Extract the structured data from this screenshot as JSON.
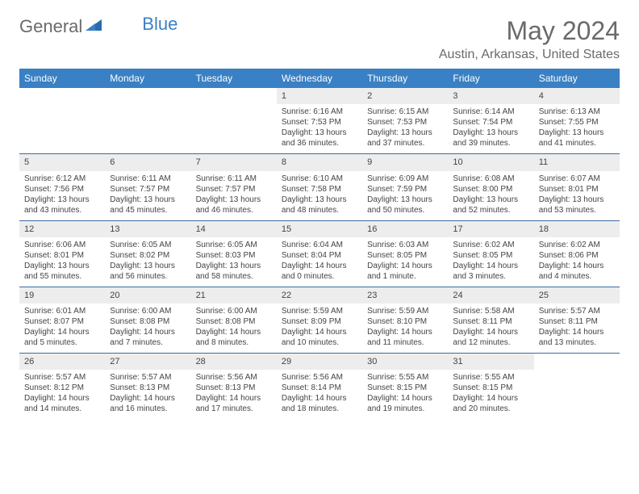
{
  "logo": {
    "general": "General",
    "blue": "Blue"
  },
  "title": "May 2024",
  "location": "Austin, Arkansas, United States",
  "headers": [
    "Sunday",
    "Monday",
    "Tuesday",
    "Wednesday",
    "Thursday",
    "Friday",
    "Saturday"
  ],
  "colors": {
    "accent": "#3a80c4",
    "text": "#6a6a6a",
    "daybg": "#ededed"
  },
  "weeks": [
    [
      null,
      null,
      null,
      {
        "n": "1",
        "sr": "Sunrise: 6:16 AM",
        "ss": "Sunset: 7:53 PM",
        "d1": "Daylight: 13 hours",
        "d2": "and 36 minutes."
      },
      {
        "n": "2",
        "sr": "Sunrise: 6:15 AM",
        "ss": "Sunset: 7:53 PM",
        "d1": "Daylight: 13 hours",
        "d2": "and 37 minutes."
      },
      {
        "n": "3",
        "sr": "Sunrise: 6:14 AM",
        "ss": "Sunset: 7:54 PM",
        "d1": "Daylight: 13 hours",
        "d2": "and 39 minutes."
      },
      {
        "n": "4",
        "sr": "Sunrise: 6:13 AM",
        "ss": "Sunset: 7:55 PM",
        "d1": "Daylight: 13 hours",
        "d2": "and 41 minutes."
      }
    ],
    [
      {
        "n": "5",
        "sr": "Sunrise: 6:12 AM",
        "ss": "Sunset: 7:56 PM",
        "d1": "Daylight: 13 hours",
        "d2": "and 43 minutes."
      },
      {
        "n": "6",
        "sr": "Sunrise: 6:11 AM",
        "ss": "Sunset: 7:57 PM",
        "d1": "Daylight: 13 hours",
        "d2": "and 45 minutes."
      },
      {
        "n": "7",
        "sr": "Sunrise: 6:11 AM",
        "ss": "Sunset: 7:57 PM",
        "d1": "Daylight: 13 hours",
        "d2": "and 46 minutes."
      },
      {
        "n": "8",
        "sr": "Sunrise: 6:10 AM",
        "ss": "Sunset: 7:58 PM",
        "d1": "Daylight: 13 hours",
        "d2": "and 48 minutes."
      },
      {
        "n": "9",
        "sr": "Sunrise: 6:09 AM",
        "ss": "Sunset: 7:59 PM",
        "d1": "Daylight: 13 hours",
        "d2": "and 50 minutes."
      },
      {
        "n": "10",
        "sr": "Sunrise: 6:08 AM",
        "ss": "Sunset: 8:00 PM",
        "d1": "Daylight: 13 hours",
        "d2": "and 52 minutes."
      },
      {
        "n": "11",
        "sr": "Sunrise: 6:07 AM",
        "ss": "Sunset: 8:01 PM",
        "d1": "Daylight: 13 hours",
        "d2": "and 53 minutes."
      }
    ],
    [
      {
        "n": "12",
        "sr": "Sunrise: 6:06 AM",
        "ss": "Sunset: 8:01 PM",
        "d1": "Daylight: 13 hours",
        "d2": "and 55 minutes."
      },
      {
        "n": "13",
        "sr": "Sunrise: 6:05 AM",
        "ss": "Sunset: 8:02 PM",
        "d1": "Daylight: 13 hours",
        "d2": "and 56 minutes."
      },
      {
        "n": "14",
        "sr": "Sunrise: 6:05 AM",
        "ss": "Sunset: 8:03 PM",
        "d1": "Daylight: 13 hours",
        "d2": "and 58 minutes."
      },
      {
        "n": "15",
        "sr": "Sunrise: 6:04 AM",
        "ss": "Sunset: 8:04 PM",
        "d1": "Daylight: 14 hours",
        "d2": "and 0 minutes."
      },
      {
        "n": "16",
        "sr": "Sunrise: 6:03 AM",
        "ss": "Sunset: 8:05 PM",
        "d1": "Daylight: 14 hours",
        "d2": "and 1 minute."
      },
      {
        "n": "17",
        "sr": "Sunrise: 6:02 AM",
        "ss": "Sunset: 8:05 PM",
        "d1": "Daylight: 14 hours",
        "d2": "and 3 minutes."
      },
      {
        "n": "18",
        "sr": "Sunrise: 6:02 AM",
        "ss": "Sunset: 8:06 PM",
        "d1": "Daylight: 14 hours",
        "d2": "and 4 minutes."
      }
    ],
    [
      {
        "n": "19",
        "sr": "Sunrise: 6:01 AM",
        "ss": "Sunset: 8:07 PM",
        "d1": "Daylight: 14 hours",
        "d2": "and 5 minutes."
      },
      {
        "n": "20",
        "sr": "Sunrise: 6:00 AM",
        "ss": "Sunset: 8:08 PM",
        "d1": "Daylight: 14 hours",
        "d2": "and 7 minutes."
      },
      {
        "n": "21",
        "sr": "Sunrise: 6:00 AM",
        "ss": "Sunset: 8:08 PM",
        "d1": "Daylight: 14 hours",
        "d2": "and 8 minutes."
      },
      {
        "n": "22",
        "sr": "Sunrise: 5:59 AM",
        "ss": "Sunset: 8:09 PM",
        "d1": "Daylight: 14 hours",
        "d2": "and 10 minutes."
      },
      {
        "n": "23",
        "sr": "Sunrise: 5:59 AM",
        "ss": "Sunset: 8:10 PM",
        "d1": "Daylight: 14 hours",
        "d2": "and 11 minutes."
      },
      {
        "n": "24",
        "sr": "Sunrise: 5:58 AM",
        "ss": "Sunset: 8:11 PM",
        "d1": "Daylight: 14 hours",
        "d2": "and 12 minutes."
      },
      {
        "n": "25",
        "sr": "Sunrise: 5:57 AM",
        "ss": "Sunset: 8:11 PM",
        "d1": "Daylight: 14 hours",
        "d2": "and 13 minutes."
      }
    ],
    [
      {
        "n": "26",
        "sr": "Sunrise: 5:57 AM",
        "ss": "Sunset: 8:12 PM",
        "d1": "Daylight: 14 hours",
        "d2": "and 14 minutes."
      },
      {
        "n": "27",
        "sr": "Sunrise: 5:57 AM",
        "ss": "Sunset: 8:13 PM",
        "d1": "Daylight: 14 hours",
        "d2": "and 16 minutes."
      },
      {
        "n": "28",
        "sr": "Sunrise: 5:56 AM",
        "ss": "Sunset: 8:13 PM",
        "d1": "Daylight: 14 hours",
        "d2": "and 17 minutes."
      },
      {
        "n": "29",
        "sr": "Sunrise: 5:56 AM",
        "ss": "Sunset: 8:14 PM",
        "d1": "Daylight: 14 hours",
        "d2": "and 18 minutes."
      },
      {
        "n": "30",
        "sr": "Sunrise: 5:55 AM",
        "ss": "Sunset: 8:15 PM",
        "d1": "Daylight: 14 hours",
        "d2": "and 19 minutes."
      },
      {
        "n": "31",
        "sr": "Sunrise: 5:55 AM",
        "ss": "Sunset: 8:15 PM",
        "d1": "Daylight: 14 hours",
        "d2": "and 20 minutes."
      },
      null
    ]
  ]
}
